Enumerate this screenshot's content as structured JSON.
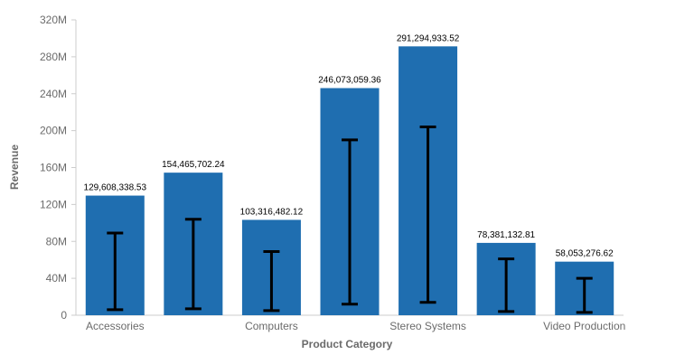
{
  "chart_data": {
    "type": "bar",
    "title": "",
    "xlabel": "Product Category",
    "ylabel": "Revenue",
    "ylim": [
      0,
      320000000
    ],
    "yticks": [
      0,
      40000000,
      80000000,
      120000000,
      160000000,
      200000000,
      240000000,
      280000000,
      320000000
    ],
    "ytick_labels": [
      "0",
      "40M",
      "80M",
      "120M",
      "160M",
      "200M",
      "240M",
      "280M",
      "320M"
    ],
    "categories": [
      "Accessories",
      "",
      "Computers",
      "",
      "Stereo Systems",
      "",
      "Video Production"
    ],
    "values": [
      129608338.53,
      154465702.24,
      103316482.12,
      246073059.36,
      291294933.52,
      78381132.81,
      58053276.62
    ],
    "value_labels": [
      "129,608,338.53",
      "154,465,702.24",
      "103,316,482.12",
      "246,073,059.36",
      "291,294,933.52",
      "78,381,132.81",
      "58,053,276.62"
    ],
    "error_bars": [
      {
        "low": 6000000,
        "high": 89000000
      },
      {
        "low": 7000000,
        "high": 104000000
      },
      {
        "low": 5000000,
        "high": 69000000
      },
      {
        "low": 12000000,
        "high": 190000000
      },
      {
        "low": 14000000,
        "high": 204000000
      },
      {
        "low": 4000000,
        "high": 61000000
      },
      {
        "low": 3000000,
        "high": 40000000
      }
    ],
    "bar_color": "#1f6eb0",
    "error_bar_color": "#000000",
    "axis_color": "#cccccc",
    "grid": false,
    "legend": "none"
  }
}
